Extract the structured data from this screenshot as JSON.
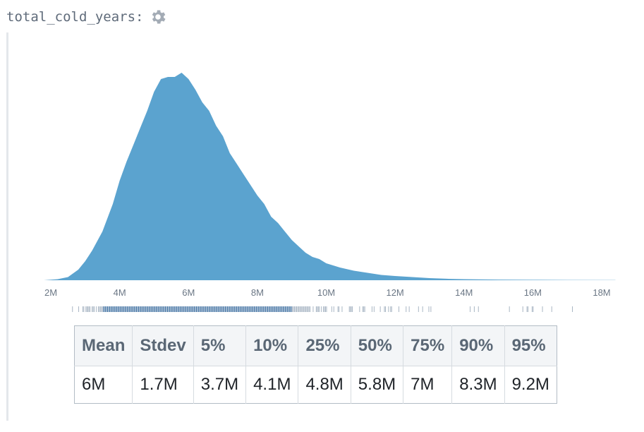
{
  "header": {
    "variable_name": "total_cold_years:",
    "settings_icon": "gear-icon"
  },
  "colors": {
    "fill": "#5ba3cf",
    "rug": "#4a78a6",
    "axis_text": "#6b7785"
  },
  "chart_data": {
    "type": "area",
    "x_ticks": [
      "2M",
      "4M",
      "6M",
      "8M",
      "10M",
      "12M",
      "14M",
      "16M",
      "18M"
    ],
    "x_tick_values": [
      2,
      4,
      6,
      8,
      10,
      12,
      14,
      16,
      18
    ],
    "xlim": [
      1.8,
      18.4
    ],
    "grid": false,
    "density": [
      [
        1.8,
        0
      ],
      [
        2.2,
        0.005
      ],
      [
        2.5,
        0.015
      ],
      [
        2.8,
        0.05
      ],
      [
        3.0,
        0.09
      ],
      [
        3.2,
        0.14
      ],
      [
        3.5,
        0.23
      ],
      [
        3.8,
        0.36
      ],
      [
        4.0,
        0.47
      ],
      [
        4.2,
        0.56
      ],
      [
        4.4,
        0.64
      ],
      [
        4.6,
        0.72
      ],
      [
        4.8,
        0.8
      ],
      [
        5.0,
        0.89
      ],
      [
        5.2,
        0.95
      ],
      [
        5.4,
        0.96
      ],
      [
        5.6,
        0.96
      ],
      [
        5.8,
        0.98
      ],
      [
        6.0,
        0.95
      ],
      [
        6.2,
        0.9
      ],
      [
        6.4,
        0.84
      ],
      [
        6.6,
        0.8
      ],
      [
        6.8,
        0.73
      ],
      [
        7.0,
        0.68
      ],
      [
        7.2,
        0.6
      ],
      [
        7.4,
        0.55
      ],
      [
        7.6,
        0.5
      ],
      [
        7.8,
        0.45
      ],
      [
        8.0,
        0.4
      ],
      [
        8.2,
        0.36
      ],
      [
        8.4,
        0.3
      ],
      [
        8.6,
        0.27
      ],
      [
        8.8,
        0.23
      ],
      [
        9.0,
        0.19
      ],
      [
        9.2,
        0.16
      ],
      [
        9.4,
        0.13
      ],
      [
        9.6,
        0.11
      ],
      [
        9.8,
        0.1
      ],
      [
        10.0,
        0.08
      ],
      [
        10.4,
        0.06
      ],
      [
        10.8,
        0.045
      ],
      [
        11.2,
        0.035
      ],
      [
        11.6,
        0.025
      ],
      [
        12.0,
        0.02
      ],
      [
        12.5,
        0.015
      ],
      [
        13.0,
        0.01
      ],
      [
        13.5,
        0.007
      ],
      [
        14.0,
        0.005
      ],
      [
        15.0,
        0.003
      ],
      [
        16.0,
        0.002
      ],
      [
        17.0,
        0.0015
      ],
      [
        18.4,
        0.001
      ]
    ],
    "rug_range": [
      2.0,
      18.3
    ]
  },
  "stats_table": {
    "headers": [
      "Mean",
      "Stdev",
      "5%",
      "10%",
      "25%",
      "50%",
      "75%",
      "90%",
      "95%"
    ],
    "values": [
      "6M",
      "1.7M",
      "3.7M",
      "4.1M",
      "4.8M",
      "5.8M",
      "7M",
      "8.3M",
      "9.2M"
    ]
  }
}
